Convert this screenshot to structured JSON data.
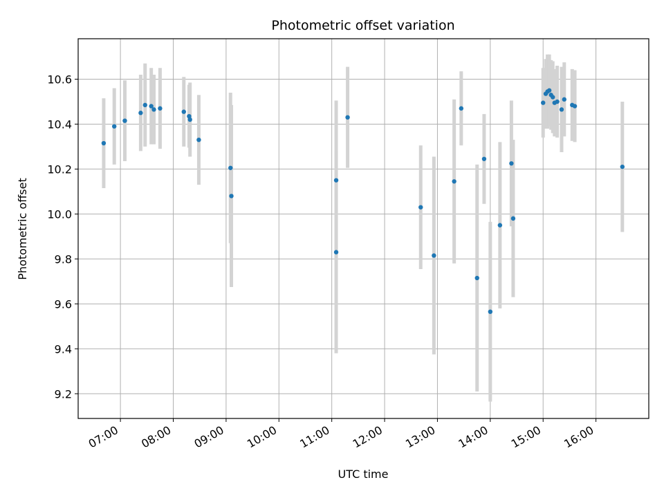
{
  "chart_data": {
    "type": "scatter",
    "title": "Photometric offset variation",
    "xlabel": "UTC time",
    "ylabel": "Photometric offset",
    "x_unit": "UTC time (HH:MM)",
    "xlim": [
      "06:12",
      "17:00"
    ],
    "ylim": [
      9.09,
      10.78
    ],
    "grid": true,
    "x_ticks": [
      "07:00",
      "08:00",
      "09:00",
      "10:00",
      "11:00",
      "12:00",
      "13:00",
      "14:00",
      "15:00",
      "16:00"
    ],
    "y_ticks": [
      "9.2",
      "9.4",
      "9.6",
      "9.8",
      "10.0",
      "10.2",
      "10.4",
      "10.6"
    ],
    "colors": {
      "points": "#1f77b4",
      "errorbars": "#d3d3d3",
      "grid": "#b0b0b0"
    },
    "series": [
      {
        "points": [
          {
            "x": "06:41",
            "y": 10.315,
            "err": 0.2
          },
          {
            "x": "06:53",
            "y": 10.39,
            "err": 0.17
          },
          {
            "x": "07:05",
            "y": 10.415,
            "err": 0.18
          },
          {
            "x": "07:23",
            "y": 10.45,
            "err": 0.17
          },
          {
            "x": "07:28",
            "y": 10.485,
            "err": 0.185
          },
          {
            "x": "07:35",
            "y": 10.48,
            "err": 0.17
          },
          {
            "x": "07:38",
            "y": 10.465,
            "err": 0.155
          },
          {
            "x": "07:45",
            "y": 10.47,
            "err": 0.18
          },
          {
            "x": "08:12",
            "y": 10.455,
            "err": 0.155
          },
          {
            "x": "08:18",
            "y": 10.435,
            "err": 0.14
          },
          {
            "x": "08:19",
            "y": 10.42,
            "err": 0.165
          },
          {
            "x": "08:29",
            "y": 10.33,
            "err": 0.2
          },
          {
            "x": "09:05",
            "y": 10.205,
            "err": 0.335
          },
          {
            "x": "09:06",
            "y": 10.08,
            "err": 0.405
          },
          {
            "x": "11:05",
            "y": 10.15,
            "err": 0.355
          },
          {
            "x": "11:05",
            "y": 9.83,
            "err": 0.45
          },
          {
            "x": "11:18",
            "y": 10.43,
            "err": 0.225
          },
          {
            "x": "12:41",
            "y": 10.03,
            "err": 0.275
          },
          {
            "x": "12:56",
            "y": 9.815,
            "err": 0.44
          },
          {
            "x": "13:19",
            "y": 10.145,
            "err": 0.365
          },
          {
            "x": "13:27",
            "y": 10.47,
            "err": 0.165
          },
          {
            "x": "13:45",
            "y": 9.715,
            "err": 0.505
          },
          {
            "x": "13:53",
            "y": 10.245,
            "err": 0.2
          },
          {
            "x": "14:00",
            "y": 9.565,
            "err": 0.4
          },
          {
            "x": "14:11",
            "y": 9.95,
            "err": 0.37
          },
          {
            "x": "14:24",
            "y": 10.225,
            "err": 0.28
          },
          {
            "x": "14:26",
            "y": 9.98,
            "err": 0.35
          },
          {
            "x": "15:00",
            "y": 10.495,
            "err": 0.155
          },
          {
            "x": "15:03",
            "y": 10.535,
            "err": 0.155
          },
          {
            "x": "15:05",
            "y": 10.545,
            "err": 0.165
          },
          {
            "x": "15:07",
            "y": 10.55,
            "err": 0.16
          },
          {
            "x": "15:09",
            "y": 10.53,
            "err": 0.155
          },
          {
            "x": "15:11",
            "y": 10.52,
            "err": 0.16
          },
          {
            "x": "15:13",
            "y": 10.495,
            "err": 0.15
          },
          {
            "x": "15:16",
            "y": 10.5,
            "err": 0.16
          },
          {
            "x": "15:21",
            "y": 10.465,
            "err": 0.19
          },
          {
            "x": "15:24",
            "y": 10.51,
            "err": 0.165
          },
          {
            "x": "15:33",
            "y": 10.485,
            "err": 0.16
          },
          {
            "x": "15:36",
            "y": 10.48,
            "err": 0.16
          },
          {
            "x": "16:30",
            "y": 10.21,
            "err": 0.29
          }
        ]
      }
    ]
  }
}
